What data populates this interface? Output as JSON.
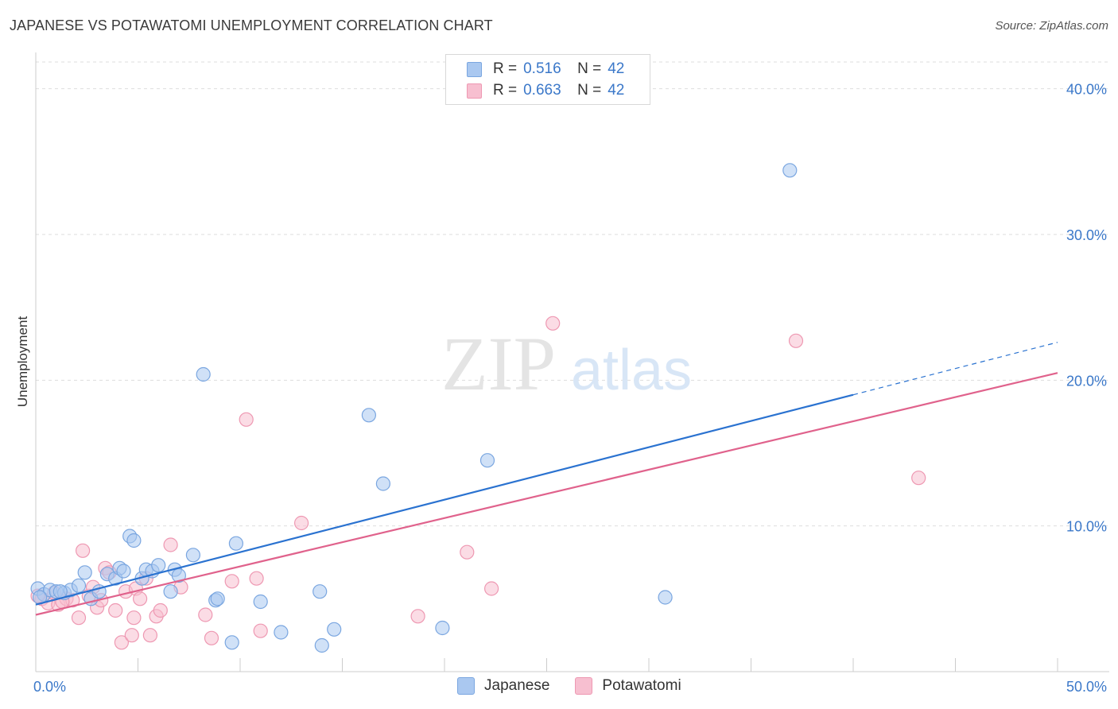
{
  "header": {
    "title": "JAPANESE VS POTAWATOMI UNEMPLOYMENT CORRELATION CHART",
    "source": "Source: ZipAtlas.com"
  },
  "watermark": {
    "zip": "ZIP",
    "atlas": "atlas"
  },
  "legend": {
    "series": [
      {
        "r_label": "R =",
        "r_value": "0.516",
        "n_label": "N =",
        "n_value": "42"
      },
      {
        "r_label": "R =",
        "r_value": "0.663",
        "n_label": "N =",
        "n_value": "42"
      }
    ]
  },
  "bottom_legend": {
    "japanese": "Japanese",
    "potawatomi": "Potawatomi"
  },
  "colors": {
    "japanese_fill": "#aac8f0",
    "japanese_stroke": "#7aa6e0",
    "japanese_line": "#2a72d0",
    "potawatomi_fill": "#f7bfd0",
    "potawatomi_stroke": "#ee98b2",
    "potawatomi_line": "#e0628c",
    "tick_text": "#3b78c9",
    "grid": "#dddddd"
  },
  "chart_data": {
    "type": "scatter",
    "title": "JAPANESE VS POTAWATOMI UNEMPLOYMENT CORRELATION CHART",
    "xlabel": "",
    "ylabel": "Unemployment",
    "xlim": [
      0,
      50
    ],
    "ylim": [
      0,
      42
    ],
    "x_tick_labels": [
      "0.0%",
      "50.0%"
    ],
    "y_ticks": [
      10,
      20,
      30,
      40
    ],
    "y_tick_labels": [
      "10.0%",
      "20.0%",
      "30.0%",
      "40.0%"
    ],
    "grid": true,
    "legend_position": "top-center",
    "series": [
      {
        "name": "Japanese",
        "r": 0.516,
        "n": 42,
        "trend": {
          "x0": 0,
          "y0": 4.6,
          "x1": 40,
          "y1": 19.0,
          "dash_to_x": 50,
          "dash_to_y": 22.6
        },
        "points": [
          [
            0.1,
            5.7
          ],
          [
            0.4,
            5.3
          ],
          [
            0.7,
            5.6
          ],
          [
            1.0,
            5.5
          ],
          [
            1.4,
            5.4
          ],
          [
            1.7,
            5.6
          ],
          [
            2.1,
            5.9
          ],
          [
            2.4,
            6.8
          ],
          [
            2.7,
            5.0
          ],
          [
            3.1,
            5.5
          ],
          [
            3.5,
            6.7
          ],
          [
            3.9,
            6.4
          ],
          [
            4.1,
            7.1
          ],
          [
            4.3,
            6.9
          ],
          [
            4.6,
            9.3
          ],
          [
            4.8,
            9.0
          ],
          [
            5.2,
            6.4
          ],
          [
            5.4,
            7.0
          ],
          [
            5.7,
            6.9
          ],
          [
            6.0,
            7.3
          ],
          [
            6.6,
            5.5
          ],
          [
            6.8,
            7.0
          ],
          [
            7.0,
            6.6
          ],
          [
            7.7,
            8.0
          ],
          [
            8.2,
            20.4
          ],
          [
            8.8,
            4.9
          ],
          [
            8.9,
            5.0
          ],
          [
            9.6,
            2.0
          ],
          [
            9.8,
            8.8
          ],
          [
            11.0,
            4.8
          ],
          [
            12.0,
            2.7
          ],
          [
            13.9,
            5.5
          ],
          [
            14.0,
            1.8
          ],
          [
            14.6,
            2.9
          ],
          [
            16.3,
            17.6
          ],
          [
            17.0,
            12.9
          ],
          [
            19.9,
            3.0
          ],
          [
            22.1,
            14.5
          ],
          [
            30.8,
            5.1
          ],
          [
            36.9,
            34.4
          ],
          [
            0.2,
            5.1
          ],
          [
            1.2,
            5.5
          ]
        ]
      },
      {
        "name": "Potawatomi",
        "r": 0.663,
        "n": 42,
        "trend": {
          "x0": 0,
          "y0": 3.9,
          "x1": 50,
          "y1": 20.5
        },
        "points": [
          [
            0.3,
            5.0
          ],
          [
            0.6,
            4.7
          ],
          [
            0.9,
            5.4
          ],
          [
            1.1,
            4.6
          ],
          [
            1.5,
            5.0
          ],
          [
            1.8,
            4.9
          ],
          [
            2.1,
            3.7
          ],
          [
            2.3,
            8.3
          ],
          [
            2.6,
            5.2
          ],
          [
            3.0,
            4.4
          ],
          [
            3.2,
            4.9
          ],
          [
            3.4,
            7.1
          ],
          [
            3.6,
            6.8
          ],
          [
            3.9,
            4.2
          ],
          [
            4.2,
            2.0
          ],
          [
            4.4,
            5.5
          ],
          [
            4.7,
            2.5
          ],
          [
            4.9,
            5.7
          ],
          [
            5.1,
            5.0
          ],
          [
            5.4,
            6.4
          ],
          [
            5.6,
            2.5
          ],
          [
            5.9,
            3.8
          ],
          [
            6.1,
            4.2
          ],
          [
            6.6,
            8.7
          ],
          [
            7.1,
            5.8
          ],
          [
            8.3,
            3.9
          ],
          [
            8.6,
            2.3
          ],
          [
            9.6,
            6.2
          ],
          [
            10.3,
            17.3
          ],
          [
            10.8,
            6.4
          ],
          [
            11.0,
            2.8
          ],
          [
            13.0,
            10.2
          ],
          [
            18.7,
            3.8
          ],
          [
            21.1,
            8.2
          ],
          [
            22.3,
            5.7
          ],
          [
            25.3,
            23.9
          ],
          [
            37.2,
            22.7
          ],
          [
            43.2,
            13.3
          ],
          [
            0.1,
            5.2
          ],
          [
            1.3,
            4.8
          ],
          [
            2.8,
            5.8
          ],
          [
            4.8,
            3.7
          ]
        ]
      }
    ]
  }
}
